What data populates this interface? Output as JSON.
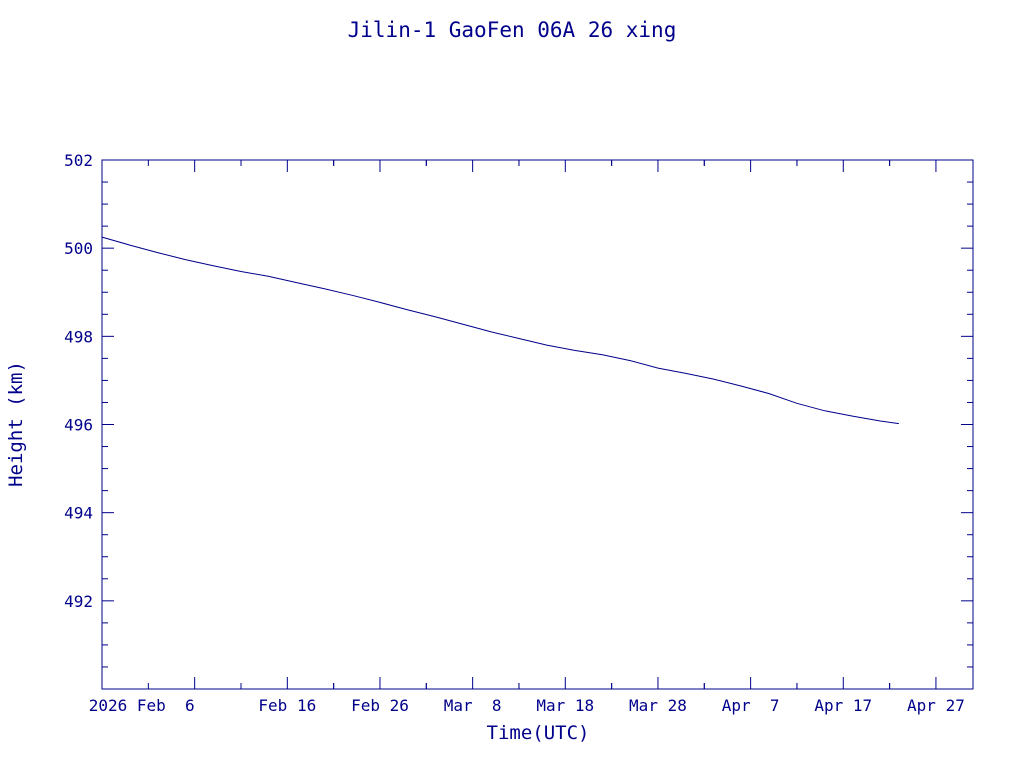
{
  "chart_data": {
    "type": "line",
    "title": "Jilin-1 GaoFen 06A 26 xing",
    "xlabel": "Time(UTC)",
    "ylabel": "Height (km)",
    "line_color": "#00008b",
    "axis_color": "#00008b",
    "background": "#ffffff",
    "grid": false,
    "legend": "none",
    "x_axis_type": "date",
    "xlim": [
      "2026-01-27",
      "2026-05-01"
    ],
    "ylim": [
      490,
      502
    ],
    "x_ticks": [
      {
        "date": "2026-02-06",
        "label": "2026 Feb  6"
      },
      {
        "date": "2026-02-16",
        "label": "Feb 16"
      },
      {
        "date": "2026-02-26",
        "label": "Feb 26"
      },
      {
        "date": "2026-03-08",
        "label": "Mar  8"
      },
      {
        "date": "2026-03-18",
        "label": "Mar 18"
      },
      {
        "date": "2026-03-28",
        "label": "Mar 28"
      },
      {
        "date": "2026-04-07",
        "label": "Apr  7"
      },
      {
        "date": "2026-04-17",
        "label": "Apr 17"
      },
      {
        "date": "2026-04-27",
        "label": "Apr 27"
      }
    ],
    "y_ticks": [
      {
        "value": 492,
        "label": "492"
      },
      {
        "value": 494,
        "label": "494"
      },
      {
        "value": 496,
        "label": "496"
      },
      {
        "value": 498,
        "label": "498"
      },
      {
        "value": 500,
        "label": "500"
      },
      {
        "value": 502,
        "label": "502"
      }
    ],
    "series": [
      {
        "points": [
          {
            "x": "2026-01-27",
            "y": 500.25
          },
          {
            "x": "2026-01-30",
            "y": 500.07
          },
          {
            "x": "2026-02-02",
            "y": 499.9
          },
          {
            "x": "2026-02-05",
            "y": 499.74
          },
          {
            "x": "2026-02-08",
            "y": 499.6
          },
          {
            "x": "2026-02-11",
            "y": 499.47
          },
          {
            "x": "2026-02-14",
            "y": 499.36
          },
          {
            "x": "2026-02-17",
            "y": 499.22
          },
          {
            "x": "2026-02-20",
            "y": 499.08
          },
          {
            "x": "2026-02-23",
            "y": 498.93
          },
          {
            "x": "2026-02-26",
            "y": 498.77
          },
          {
            "x": "2026-03-01",
            "y": 498.6
          },
          {
            "x": "2026-03-04",
            "y": 498.44
          },
          {
            "x": "2026-03-07",
            "y": 498.27
          },
          {
            "x": "2026-03-10",
            "y": 498.1
          },
          {
            "x": "2026-03-13",
            "y": 497.95
          },
          {
            "x": "2026-03-16",
            "y": 497.8
          },
          {
            "x": "2026-03-19",
            "y": 497.68
          },
          {
            "x": "2026-03-22",
            "y": 497.58
          },
          {
            "x": "2026-03-25",
            "y": 497.45
          },
          {
            "x": "2026-03-28",
            "y": 497.28
          },
          {
            "x": "2026-03-31",
            "y": 497.16
          },
          {
            "x": "2026-04-03",
            "y": 497.03
          },
          {
            "x": "2026-04-06",
            "y": 496.87
          },
          {
            "x": "2026-04-09",
            "y": 496.7
          },
          {
            "x": "2026-04-12",
            "y": 496.48
          },
          {
            "x": "2026-04-15",
            "y": 496.31
          },
          {
            "x": "2026-04-18",
            "y": 496.19
          },
          {
            "x": "2026-04-21",
            "y": 496.08
          },
          {
            "x": "2026-04-23",
            "y": 496.02
          }
        ]
      }
    ]
  }
}
